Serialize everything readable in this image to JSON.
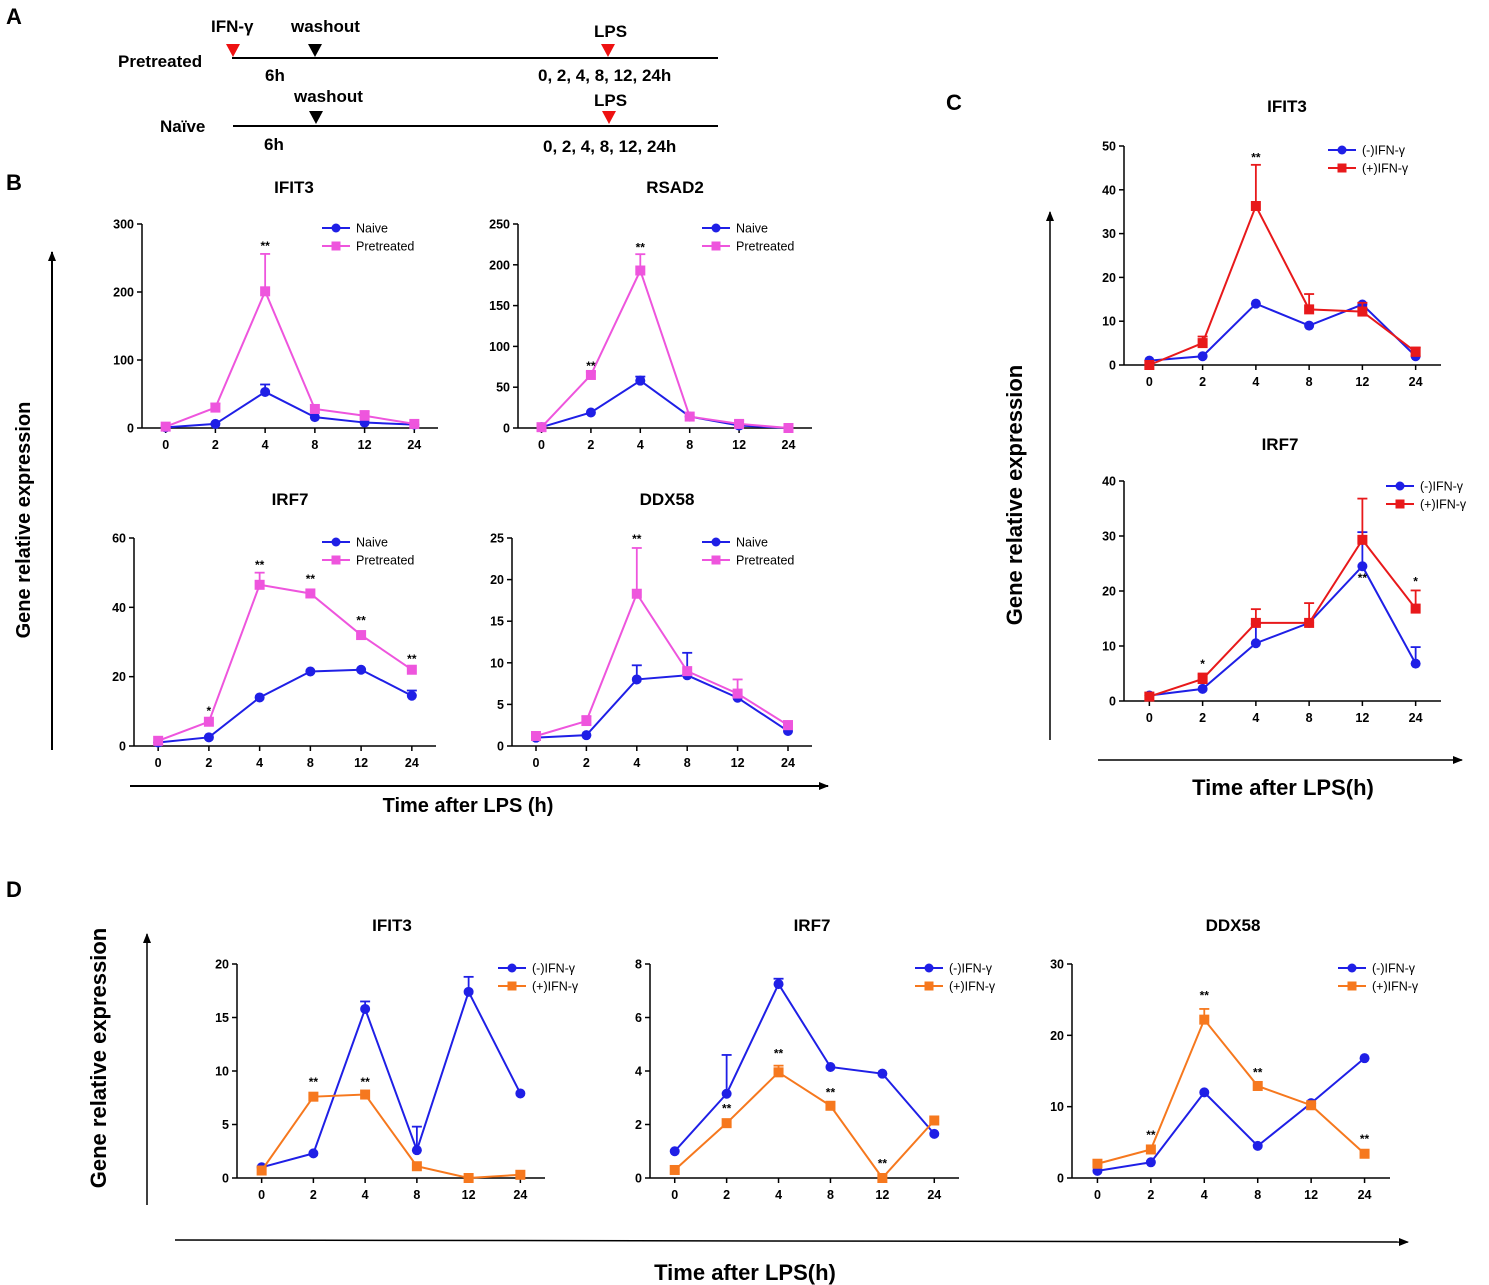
{
  "figure": {
    "panel_labels": {
      "a": "A",
      "b": "B",
      "c": "C",
      "d": "D"
    },
    "colors": {
      "naive": "#1f1fe6",
      "pretreated": "#ee55dd",
      "ifn_plus_red": "#e8191b",
      "ifn_plus_orange": "#f6781e",
      "marker_red": "#ee1111",
      "marker_black": "#000000"
    }
  },
  "timeline": {
    "rows": [
      {
        "label": "Pretreated",
        "ifn_label": "IFN-γ",
        "washout_label": "washout",
        "lps_label": "LPS",
        "duration_label": "6h",
        "times_label": "0, 2, 4, 8, 12, 24h"
      },
      {
        "label": "Naïve",
        "washout_label": "washout",
        "lps_label": "LPS",
        "duration_label": "6h",
        "times_label": "0, 2, 4, 8, 12, 24h"
      }
    ]
  },
  "shared_axes": {
    "b": {
      "ylabel": "Gene relative expression",
      "xlabel": "Time after LPS (h)"
    },
    "c": {
      "ylabel": "Gene relative expression",
      "xlabel": "Time after LPS(h)"
    },
    "d": {
      "ylabel": "Gene relative expression",
      "xlabel": "Time after LPS(h)"
    }
  },
  "chart_data": [
    {
      "id": "b1",
      "panel": "B",
      "type": "line",
      "title": "IFIT3",
      "categories": [
        "0",
        "2",
        "4",
        "8",
        "12",
        "24"
      ],
      "ylim": [
        0,
        300
      ],
      "yticks": [
        0,
        100,
        200,
        300
      ],
      "series": [
        {
          "name": "Naive",
          "color": "#1f1fe6",
          "marker": "circle",
          "values": [
            1,
            6,
            53,
            16,
            8,
            5
          ],
          "err": [
            0,
            0,
            11,
            0,
            0,
            0
          ]
        },
        {
          "name": "Pretreated",
          "color": "#ee55dd",
          "marker": "square",
          "values": [
            2,
            30,
            201,
            28,
            18,
            6
          ],
          "err": [
            0,
            6,
            55,
            0,
            7,
            0
          ]
        }
      ],
      "annotations": [
        {
          "x": 2,
          "y": 262,
          "text": "**"
        }
      ]
    },
    {
      "id": "b2",
      "panel": "B",
      "type": "line",
      "title": "RSAD2",
      "categories": [
        "0",
        "2",
        "4",
        "8",
        "12",
        "24"
      ],
      "ylim": [
        0,
        250
      ],
      "yticks": [
        0,
        50,
        100,
        150,
        200,
        250
      ],
      "series": [
        {
          "name": "Naive",
          "color": "#1f1fe6",
          "marker": "circle",
          "values": [
            1,
            19,
            58,
            14,
            3,
            0
          ],
          "err": [
            0,
            0,
            5,
            0,
            0,
            0
          ]
        },
        {
          "name": "Pretreated",
          "color": "#ee55dd",
          "marker": "square",
          "values": [
            1,
            65,
            193,
            14,
            5,
            0
          ],
          "err": [
            0,
            4,
            20,
            0,
            4,
            0
          ]
        }
      ],
      "annotations": [
        {
          "x": 1,
          "y": 71,
          "text": "**"
        },
        {
          "x": 2,
          "y": 216,
          "text": "**"
        }
      ]
    },
    {
      "id": "b3",
      "panel": "B",
      "type": "line",
      "title": "IRF7",
      "categories": [
        "0",
        "2",
        "4",
        "8",
        "12",
        "24"
      ],
      "ylim": [
        0,
        60
      ],
      "yticks": [
        0,
        20,
        40,
        60
      ],
      "series": [
        {
          "name": "Naive",
          "color": "#1f1fe6",
          "marker": "circle",
          "values": [
            1,
            2.5,
            14,
            21.5,
            22,
            14.5
          ],
          "err": [
            0,
            0,
            0,
            0,
            0,
            1.5
          ]
        },
        {
          "name": "Pretreated",
          "color": "#ee55dd",
          "marker": "square",
          "values": [
            1.5,
            7,
            46.5,
            44,
            32,
            22
          ],
          "err": [
            0,
            0,
            3.5,
            0,
            0,
            0
          ]
        }
      ],
      "annotations": [
        {
          "x": 1,
          "y": 9,
          "text": "*"
        },
        {
          "x": 2,
          "y": 51,
          "text": "**"
        },
        {
          "x": 3,
          "y": 47,
          "text": "**"
        },
        {
          "x": 4,
          "y": 35,
          "text": "**"
        },
        {
          "x": 5,
          "y": 24,
          "text": "**"
        }
      ]
    },
    {
      "id": "b4",
      "panel": "B",
      "type": "line",
      "title": "DDX58",
      "categories": [
        "0",
        "2",
        "4",
        "8",
        "12",
        "24"
      ],
      "ylim": [
        0,
        25
      ],
      "yticks": [
        0,
        5,
        10,
        15,
        20,
        25
      ],
      "series": [
        {
          "name": "Naive",
          "color": "#1f1fe6",
          "marker": "circle",
          "values": [
            1,
            1.3,
            8,
            8.5,
            5.8,
            1.8
          ],
          "err": [
            0,
            0,
            1.7,
            2.7,
            0,
            0
          ]
        },
        {
          "name": "Pretreated",
          "color": "#ee55dd",
          "marker": "square",
          "values": [
            1.2,
            3,
            18.3,
            9,
            6.3,
            2.5
          ],
          "err": [
            0,
            0.6,
            5.5,
            0,
            1.7,
            0.5
          ]
        }
      ],
      "annotations": [
        {
          "x": 2,
          "y": 24.4,
          "text": "**"
        }
      ]
    },
    {
      "id": "c1",
      "panel": "C",
      "type": "line",
      "title": "IFIT3",
      "categories": [
        "0",
        "2",
        "4",
        "8",
        "12",
        "24"
      ],
      "ylim": [
        0,
        50
      ],
      "yticks": [
        0,
        10,
        20,
        30,
        40,
        50
      ],
      "series": [
        {
          "name": "(-)IFN-γ",
          "color": "#1f1fe6",
          "marker": "circle",
          "values": [
            1,
            2,
            14,
            9,
            13.8,
            2
          ],
          "err": [
            0,
            0,
            0,
            0,
            0,
            0
          ]
        },
        {
          "name": "(+)IFN-γ",
          "color": "#e8191b",
          "marker": "square",
          "values": [
            0,
            5,
            36.3,
            12.7,
            12.2,
            3
          ],
          "err": [
            0,
            1.5,
            9.4,
            3.5,
            2,
            1
          ]
        }
      ],
      "annotations": [
        {
          "x": 2,
          "y": 46.5,
          "text": "**"
        }
      ]
    },
    {
      "id": "c2",
      "panel": "C",
      "type": "line",
      "title": "IRF7",
      "categories": [
        "0",
        "2",
        "4",
        "8",
        "12",
        "24"
      ],
      "ylim": [
        0,
        40
      ],
      "yticks": [
        0,
        10,
        20,
        30,
        40
      ],
      "series": [
        {
          "name": "(-)IFN-γ",
          "color": "#1f1fe6",
          "marker": "circle",
          "values": [
            1,
            2.2,
            10.5,
            14.2,
            24.5,
            6.8
          ],
          "err": [
            0,
            0,
            3.5,
            0,
            6.2,
            3
          ]
        },
        {
          "name": "(+)IFN-γ",
          "color": "#e8191b",
          "marker": "square",
          "values": [
            0.8,
            4,
            14.2,
            14.2,
            29.3,
            16.8
          ],
          "err": [
            0,
            1,
            2.5,
            3.6,
            7.5,
            3.3
          ]
        }
      ],
      "annotations": [
        {
          "x": 1,
          "y": 6,
          "text": "*"
        },
        {
          "x": 4,
          "y": 21.6,
          "text": "**"
        },
        {
          "x": 5,
          "y": 21,
          "text": "*"
        }
      ]
    },
    {
      "id": "d1",
      "panel": "D",
      "type": "line",
      "title": "IFIT3",
      "categories": [
        "0",
        "2",
        "4",
        "8",
        "12",
        "24"
      ],
      "ylim": [
        0,
        20
      ],
      "yticks": [
        0,
        5,
        10,
        15,
        20
      ],
      "series": [
        {
          "name": "(-)IFN-γ",
          "color": "#1f1fe6",
          "marker": "circle",
          "values": [
            1,
            2.3,
            15.8,
            2.6,
            17.4,
            7.9
          ],
          "err": [
            0,
            0,
            0.7,
            2.2,
            1.4,
            0
          ]
        },
        {
          "name": "(+)IFN-γ",
          "color": "#f6781e",
          "marker": "square",
          "values": [
            0.7,
            7.6,
            7.8,
            1.1,
            0,
            0.3
          ],
          "err": [
            0,
            0,
            0,
            0,
            0,
            0
          ]
        }
      ],
      "annotations": [
        {
          "x": 1,
          "y": 8.6,
          "text": "**"
        },
        {
          "x": 2,
          "y": 8.6,
          "text": "**"
        }
      ]
    },
    {
      "id": "d2",
      "panel": "D",
      "type": "line",
      "title": "IRF7",
      "categories": [
        "0",
        "2",
        "4",
        "8",
        "12",
        "24"
      ],
      "ylim": [
        0,
        8
      ],
      "yticks": [
        0,
        2,
        4,
        6,
        8
      ],
      "series": [
        {
          "name": "(-)IFN-γ",
          "color": "#1f1fe6",
          "marker": "circle",
          "values": [
            1,
            3.15,
            7.25,
            4.15,
            3.9,
            1.65
          ],
          "err": [
            0,
            1.45,
            0.2,
            0,
            0,
            0
          ]
        },
        {
          "name": "(+)IFN-γ",
          "color": "#f6781e",
          "marker": "square",
          "values": [
            0.3,
            2.05,
            3.95,
            2.7,
            0,
            2.15
          ],
          "err": [
            0,
            0,
            0.25,
            0,
            0,
            0
          ]
        }
      ],
      "annotations": [
        {
          "x": 1,
          "y": 2.45,
          "text": "**"
        },
        {
          "x": 2,
          "y": 4.5,
          "text": "**"
        },
        {
          "x": 3,
          "y": 3.05,
          "text": "**"
        },
        {
          "x": 4,
          "y": 0.4,
          "text": "**"
        }
      ]
    },
    {
      "id": "d3",
      "panel": "D",
      "type": "line",
      "title": "DDX58",
      "categories": [
        "0",
        "2",
        "4",
        "8",
        "12",
        "24"
      ],
      "ylim": [
        0,
        30
      ],
      "yticks": [
        0,
        10,
        20,
        30
      ],
      "series": [
        {
          "name": "(-)IFN-γ",
          "color": "#1f1fe6",
          "marker": "circle",
          "values": [
            1,
            2.2,
            12,
            4.5,
            10.5,
            16.8
          ],
          "err": [
            0,
            0,
            0,
            0,
            0,
            0
          ]
        },
        {
          "name": "(+)IFN-γ",
          "color": "#f6781e",
          "marker": "square",
          "values": [
            2,
            4,
            22.2,
            12.9,
            10.2,
            3.4
          ],
          "err": [
            0,
            0,
            1.5,
            0,
            0,
            0
          ]
        }
      ],
      "annotations": [
        {
          "x": 1,
          "y": 5.5,
          "text": "**"
        },
        {
          "x": 2,
          "y": 25,
          "text": "**"
        },
        {
          "x": 3,
          "y": 14.2,
          "text": "**"
        },
        {
          "x": 5,
          "y": 4.9,
          "text": "**"
        }
      ]
    }
  ]
}
